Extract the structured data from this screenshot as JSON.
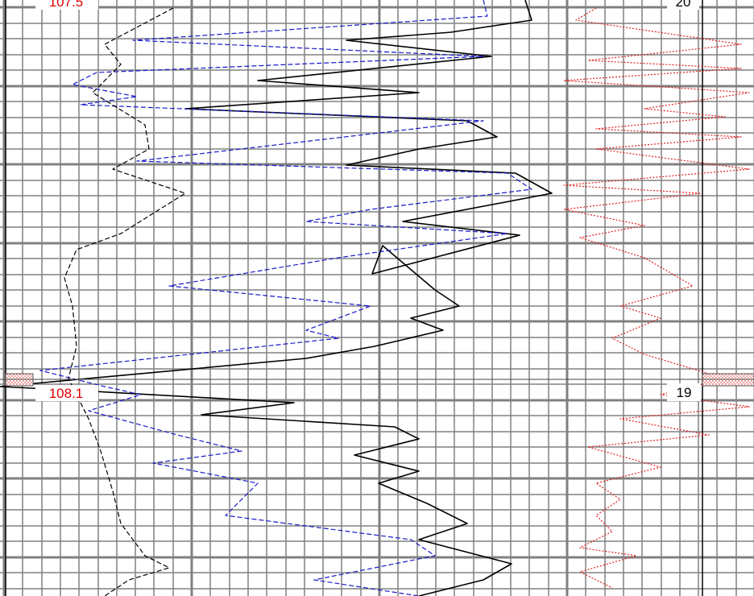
{
  "chart_data": {
    "type": "line",
    "title": "",
    "xlabel": "",
    "ylabel": "",
    "depth_labels": {
      "top_left": "107.5",
      "mid_left": "108.1",
      "top_right": "20",
      "mid_right": "19"
    },
    "colors": {
      "grid": "#808080",
      "black_curve": "#000000",
      "blue_curve": "#1a1acc",
      "red_curve": "#e02020",
      "left_depth_text": "#e00000",
      "right_depth_text": "#000000",
      "hatch_marker": "#e06060"
    },
    "series": [
      {
        "style": "solid",
        "color": "#000000",
        "points": [
          [
            652,
            0
          ],
          [
            660,
            25
          ],
          [
            560,
            40
          ],
          [
            430,
            50
          ],
          [
            610,
            70
          ],
          [
            320,
            100
          ],
          [
            520,
            115
          ],
          [
            230,
            135
          ],
          [
            580,
            150
          ],
          [
            617,
            170
          ],
          [
            520,
            185
          ],
          [
            430,
            205
          ],
          [
            640,
            215
          ],
          [
            685,
            240
          ],
          [
            500,
            275
          ],
          [
            645,
            292
          ],
          [
            462,
            340
          ],
          [
            475,
            305
          ],
          [
            540,
            360
          ],
          [
            570,
            380
          ],
          [
            510,
            395
          ],
          [
            550,
            410
          ],
          [
            465,
            430
          ],
          [
            380,
            445
          ],
          [
            0,
            480
          ],
          [
            100,
            485
          ],
          [
            365,
            500
          ],
          [
            250,
            515
          ],
          [
            490,
            530
          ],
          [
            520,
            545
          ],
          [
            440,
            565
          ],
          [
            520,
            585
          ],
          [
            470,
            600
          ],
          [
            530,
            625
          ],
          [
            580,
            650
          ],
          [
            520,
            670
          ],
          [
            635,
            700
          ],
          [
            600,
            720
          ],
          [
            520,
            740
          ]
        ]
      },
      {
        "style": "dashed",
        "color": "#1a1acc",
        "points": [
          [
            600,
            0
          ],
          [
            605,
            20
          ],
          [
            165,
            50
          ],
          [
            600,
            70
          ],
          [
            120,
            90
          ],
          [
            90,
            105
          ],
          [
            170,
            120
          ],
          [
            100,
            130
          ],
          [
            600,
            150
          ],
          [
            170,
            200
          ],
          [
            630,
            215
          ],
          [
            660,
            235
          ],
          [
            460,
            260
          ],
          [
            380,
            275
          ],
          [
            630,
            290
          ],
          [
            420,
            320
          ],
          [
            210,
            355
          ],
          [
            460,
            380
          ],
          [
            380,
            410
          ],
          [
            420,
            420
          ],
          [
            50,
            460
          ],
          [
            130,
            480
          ],
          [
            175,
            490
          ],
          [
            110,
            510
          ],
          [
            220,
            540
          ],
          [
            300,
            560
          ],
          [
            190,
            575
          ],
          [
            320,
            600
          ],
          [
            280,
            640
          ],
          [
            510,
            670
          ],
          [
            540,
            690
          ],
          [
            390,
            720
          ],
          [
            520,
            740
          ]
        ]
      },
      {
        "style": "dashed",
        "color": "#000000",
        "points": [
          [
            215,
            10
          ],
          [
            130,
            55
          ],
          [
            150,
            80
          ],
          [
            115,
            115
          ],
          [
            180,
            155
          ],
          [
            185,
            185
          ],
          [
            140,
            210
          ],
          [
            230,
            240
          ],
          [
            150,
            290
          ],
          [
            95,
            310
          ],
          [
            80,
            345
          ],
          [
            90,
            380
          ],
          [
            95,
            430
          ],
          [
            85,
            470
          ],
          [
            110,
            520
          ],
          [
            125,
            560
          ],
          [
            140,
            610
          ],
          [
            150,
            650
          ],
          [
            180,
            690
          ],
          [
            210,
            705
          ],
          [
            160,
            720
          ],
          [
            130,
            740
          ]
        ]
      },
      {
        "style": "dotted",
        "color": "#e02020",
        "points": [
          [
            740,
            10
          ],
          [
            715,
            25
          ],
          [
            920,
            55
          ],
          [
            730,
            75
          ],
          [
            920,
            85
          ],
          [
            700,
            100
          ],
          [
            930,
            115
          ],
          [
            800,
            135
          ],
          [
            900,
            145
          ],
          [
            740,
            160
          ],
          [
            920,
            170
          ],
          [
            740,
            185
          ],
          [
            930,
            210
          ],
          [
            700,
            230
          ],
          [
            870,
            240
          ],
          [
            700,
            260
          ],
          [
            800,
            280
          ],
          [
            720,
            295
          ],
          [
            800,
            320
          ],
          [
            860,
            355
          ],
          [
            770,
            380
          ],
          [
            820,
            395
          ],
          [
            760,
            420
          ],
          [
            800,
            440
          ],
          [
            900,
            470
          ],
          [
            820,
            490
          ],
          [
            930,
            505
          ],
          [
            770,
            520
          ],
          [
            880,
            540
          ],
          [
            730,
            555
          ],
          [
            820,
            580
          ],
          [
            740,
            600
          ],
          [
            770,
            620
          ],
          [
            740,
            640
          ],
          [
            760,
            660
          ],
          [
            720,
            680
          ],
          [
            790,
            690
          ],
          [
            720,
            710
          ],
          [
            760,
            730
          ]
        ]
      }
    ]
  }
}
